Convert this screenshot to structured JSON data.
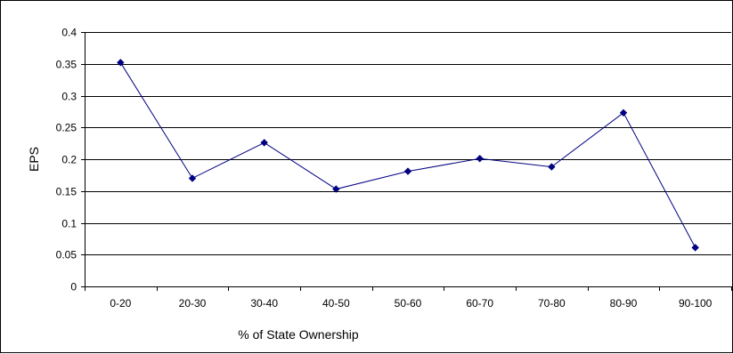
{
  "chart_data": {
    "type": "line",
    "title": "",
    "xlabel": "% of State Ownership",
    "ylabel": "EPS",
    "categories": [
      "0-20",
      "20-30",
      "30-40",
      "40-50",
      "50-60",
      "60-70",
      "70-80",
      "80-90",
      "90-100"
    ],
    "series": [
      {
        "values": [
          0.352,
          0.17,
          0.226,
          0.153,
          0.181,
          0.201,
          0.188,
          0.273,
          0.061
        ]
      }
    ],
    "ylim": [
      0,
      0.4
    ],
    "yticks": [
      "0",
      "0.05",
      "0.1",
      "0.15",
      "0.2",
      "0.25",
      "0.3",
      "0.35",
      "0.4"
    ],
    "grid": true,
    "legend": "none",
    "colors": {
      "series": "#000080",
      "grid": "#000000",
      "axis": "#000000"
    }
  }
}
